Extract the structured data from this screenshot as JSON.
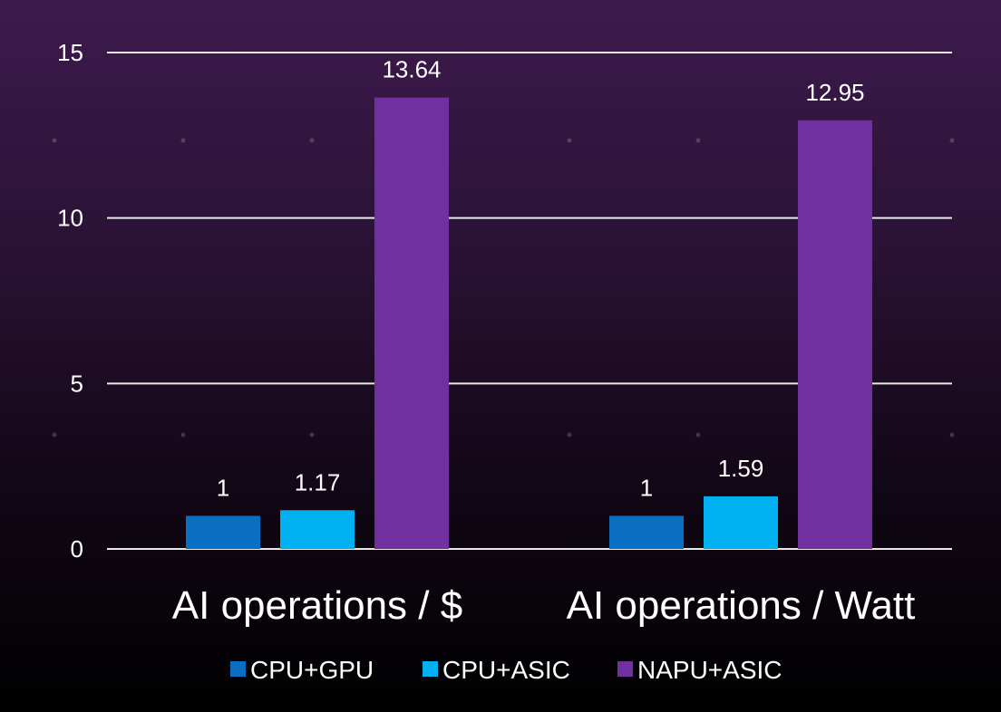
{
  "chart_data": {
    "type": "bar",
    "categories": [
      "AI operations / $",
      "AI operations / Watt"
    ],
    "series": [
      {
        "name": "CPU+GPU",
        "values": [
          1,
          1
        ],
        "labels": [
          "1",
          "1"
        ],
        "color": "#0a6fc2"
      },
      {
        "name": "CPU+ASIC",
        "values": [
          1.17,
          1.59
        ],
        "labels": [
          "1.17",
          "1.59"
        ],
        "color": "#00b0f0"
      },
      {
        "name": "NAPU+ASIC",
        "values": [
          13.64,
          12.95
        ],
        "labels": [
          "13.64",
          "12.95"
        ],
        "color": "#7030a0"
      }
    ],
    "yticks": [
      "0",
      "5",
      "10",
      "15"
    ],
    "ylim": [
      0,
      15
    ],
    "grid": true,
    "legend": "bottom",
    "colors": {
      "background_top": "#3e1a4d",
      "background_bottom": "#000000",
      "grid": "#e8e8e8",
      "text": "#ffffff"
    }
  }
}
